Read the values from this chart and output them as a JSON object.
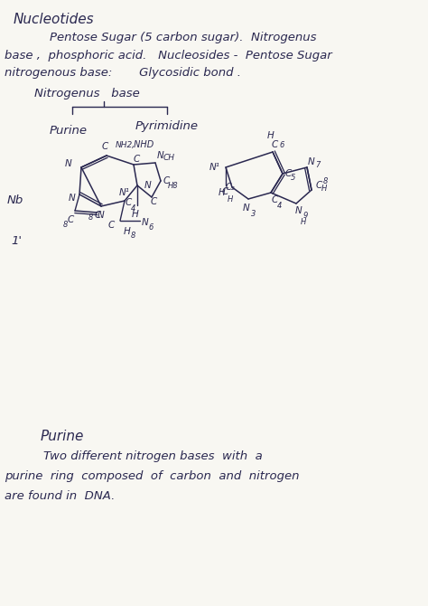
{
  "paper_color": "#f8f7f2",
  "text_color": "#2a2850",
  "line_color": "#2a2850",
  "title": "Nucleotides",
  "line1": "        Pentose Sugar (5 carbon sugar).  Nitrogenus",
  "line2": "base ,  phosphoric acid.   Nucleosides -  Pentose Sugar",
  "line3": "nitrogenous base:       Glycosidic bond .",
  "nitro_heading": "Nitrogenus   base",
  "purine_lbl": "Purine",
  "pyrimidine_lbl": "Pyrimidine",
  "nb_label": "Nb",
  "one_prime": "1'",
  "bottom_heading": "Purine",
  "bottom_line1": "    Two different nitrogen bases  with  a",
  "bottom_line2": "purine  ring  composed  of  carbon  and  nitrogen",
  "bottom_line3": "are found in  DNA.",
  "title_size": 11,
  "body_size": 9.5,
  "small_size": 7.5
}
